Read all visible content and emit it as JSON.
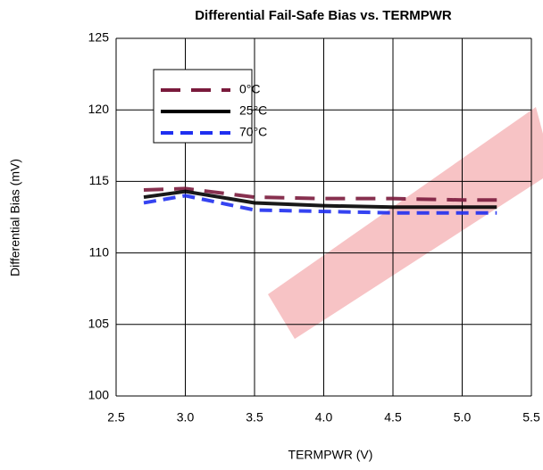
{
  "chart_data": {
    "type": "line",
    "title": "Differential Fail-Safe Bias vs. TERMPWR",
    "x_label": "TERMPWR (V)",
    "y_label": "Differential Bias (mV)",
    "x": [
      2.7,
      3.0,
      3.5,
      4.0,
      4.5,
      5.0,
      5.25
    ],
    "series": [
      {
        "name": "0°C",
        "color": "#7a1a3c",
        "dash": "long-dashed",
        "values": [
          114.4,
          114.5,
          113.9,
          113.8,
          113.8,
          113.7,
          113.7
        ]
      },
      {
        "name": "25°C",
        "color": "#000000",
        "dash": "solid",
        "values": [
          113.9,
          114.3,
          113.5,
          113.3,
          113.2,
          113.2,
          113.2
        ]
      },
      {
        "name": "70°C",
        "color": "#1f2ff0",
        "dash": "dashed",
        "values": [
          113.5,
          114.0,
          113.0,
          112.9,
          112.8,
          112.8,
          112.8
        ]
      }
    ],
    "xlim": [
      2.5,
      5.5
    ],
    "xticks": [
      2.5,
      {
        "value": 3,
        "label": "3.0"
      },
      3.5,
      {
        "value": 4,
        "label": "4.0"
      },
      4.5,
      {
        "value": 5,
        "label": "5.0"
      },
      5.5
    ],
    "ylim": [
      100,
      125
    ],
    "yticks": [
      100,
      105,
      110,
      115,
      120,
      125
    ],
    "grid": true
  }
}
